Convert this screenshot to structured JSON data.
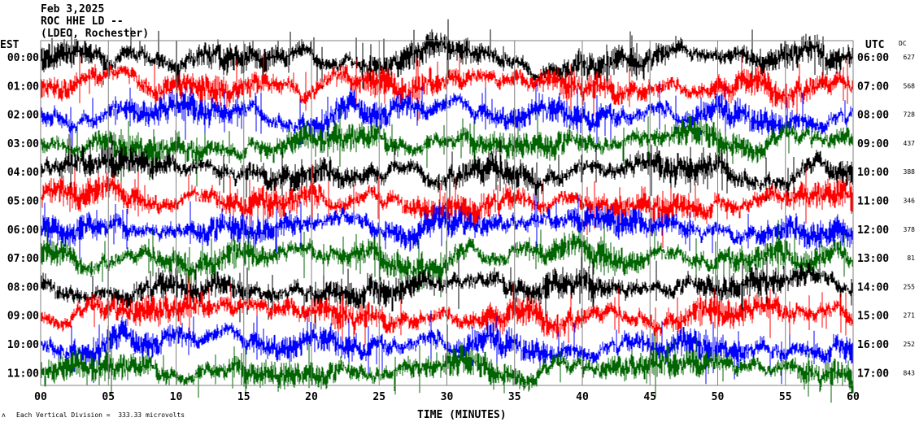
{
  "header": {
    "date": "Feb 3,2025",
    "station": "ROC HHE LD --",
    "network": "(LDEO, Rochester)"
  },
  "chart_data": {
    "type": "line",
    "left_axis_label": "EST",
    "right_axis_label": "UTC",
    "dc_label": "DC",
    "xlabel": "TIME (MINUTES)",
    "xlim": [
      0,
      60
    ],
    "x_ticks": [
      "00",
      "05",
      "10",
      "15",
      "20",
      "25",
      "30",
      "35",
      "40",
      "45",
      "50",
      "55",
      "60"
    ],
    "grid": "vertical every 5 minutes",
    "trace_colors": [
      "#000000",
      "#ff0000",
      "#0000ff",
      "#006400"
    ],
    "rows": [
      {
        "est": "00:00",
        "utc": "06:00",
        "dc": "627"
      },
      {
        "est": "01:00",
        "utc": "07:00",
        "dc": "568"
      },
      {
        "est": "02:00",
        "utc": "08:00",
        "dc": "728"
      },
      {
        "est": "03:00",
        "utc": "09:00",
        "dc": "437"
      },
      {
        "est": "04:00",
        "utc": "10:00",
        "dc": "388"
      },
      {
        "est": "05:00",
        "utc": "11:00",
        "dc": "346"
      },
      {
        "est": "06:00",
        "utc": "12:00",
        "dc": "378"
      },
      {
        "est": "07:00",
        "utc": "13:00",
        "dc": "81"
      },
      {
        "est": "08:00",
        "utc": "14:00",
        "dc": "255"
      },
      {
        "est": "09:00",
        "utc": "15:00",
        "dc": "271"
      },
      {
        "est": "10:00",
        "utc": "16:00",
        "dc": "252"
      },
      {
        "est": "11:00",
        "utc": "17:00",
        "dc": "843"
      }
    ],
    "scale_text": "Each Vertical Division =  333.33 microvolts",
    "scale_symbol": "ʌ"
  }
}
